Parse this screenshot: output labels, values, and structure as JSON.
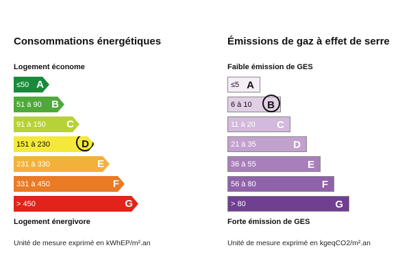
{
  "energy": {
    "title": "Consommations énergétiques",
    "top_label": "Logement économe",
    "bottom_label": "Logement énergivore",
    "unit": "Unité de mesure exprimé en kWhEP/m².an",
    "classes": [
      {
        "range": "≤50",
        "letter": "A",
        "color": "#1a8a3a",
        "text_color": "#ffffff"
      },
      {
        "range": "51 à 90",
        "letter": "B",
        "color": "#4fa83a",
        "text_color": "#ffffff"
      },
      {
        "range": "91 à 150",
        "letter": "C",
        "color": "#b7d238",
        "text_color": "#ffffff"
      },
      {
        "range": "151 à 230",
        "letter": "D",
        "color": "#f4e83a",
        "text_color": "#111111"
      },
      {
        "range": "231 à 330",
        "letter": "E",
        "color": "#f2b13b",
        "text_color": "#ffffff"
      },
      {
        "range": "331 à 450",
        "letter": "F",
        "color": "#e97a26",
        "text_color": "#ffffff"
      },
      {
        "range": "> 450",
        "letter": "G",
        "color": "#e2231a",
        "text_color": "#ffffff"
      }
    ],
    "selected": "D"
  },
  "ges": {
    "title": "Émissions de gaz à effet de serre",
    "top_label": "Faible émission de GES",
    "bottom_label": "Forte émission de GES",
    "unit": "Unité de mesure exprimé en kgeqCO2/m².an",
    "classes": [
      {
        "range": "≤5",
        "letter": "A",
        "color": "#f5eef7",
        "text_color": "#111111"
      },
      {
        "range": "6 à 10",
        "letter": "B",
        "color": "#e1cfe6",
        "text_color": "#111111"
      },
      {
        "range": "11 à 20",
        "letter": "C",
        "color": "#d3b9dc",
        "text_color": "#ffffff"
      },
      {
        "range": "21 à 35",
        "letter": "D",
        "color": "#c2a1cf",
        "text_color": "#ffffff"
      },
      {
        "range": "36 à 55",
        "letter": "E",
        "color": "#a97fbb",
        "text_color": "#ffffff"
      },
      {
        "range": "56 à 80",
        "letter": "F",
        "color": "#8f62a9",
        "text_color": "#ffffff"
      },
      {
        "range": "> 80",
        "letter": "G",
        "color": "#6f3f92",
        "text_color": "#ffffff"
      }
    ],
    "selected": "B"
  }
}
